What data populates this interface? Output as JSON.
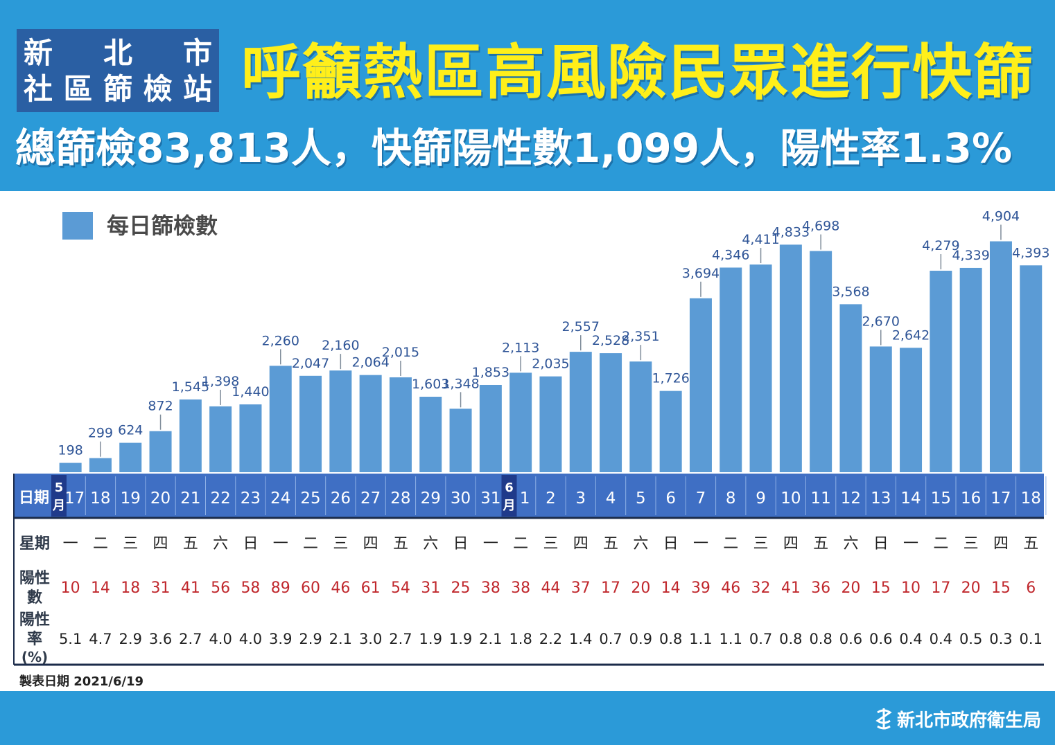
{
  "header": {
    "badge_line1": "新 北 市",
    "badge_line2": "社區篩檢站",
    "headline": "呼籲熱區高風險民眾進行快篩",
    "subline": "總篩檢83,813人，快篩陽性數1,099人，陽性率1.3%"
  },
  "legend": {
    "label": "每日篩檢數"
  },
  "footer": {
    "date": "製表日期 2021/6/19",
    "org": "新北市政府衛生局"
  },
  "table": {
    "row_date_label": "日期",
    "row_weekday_label": "星期",
    "row_positive_label_1": "陽性",
    "row_positive_label_2": "數",
    "row_rate_label_1": "陽性",
    "row_rate_label_2": "率",
    "row_rate_label_3": "(%)",
    "month_may": "5月",
    "month_june": "6月"
  },
  "colors": {
    "header_bg": "#2b9ad8",
    "headline": "#ffef1a",
    "bar": "#5b9bd5",
    "value_label": "#2f5597",
    "date_band": "#3f6fc4",
    "month_marker": "#1f3a8a",
    "positive_text": "#c0282d"
  },
  "chart_data": {
    "type": "bar",
    "categories": [
      "17",
      "18",
      "19",
      "20",
      "21",
      "22",
      "23",
      "24",
      "25",
      "26",
      "27",
      "28",
      "29",
      "30",
      "31",
      "1",
      "2",
      "3",
      "4",
      "5",
      "6",
      "7",
      "8",
      "9",
      "10",
      "11",
      "12",
      "13",
      "14",
      "15",
      "16",
      "17",
      "18"
    ],
    "weekdays": [
      "一",
      "二",
      "三",
      "四",
      "五",
      "六",
      "日",
      "一",
      "二",
      "三",
      "四",
      "五",
      "六",
      "日",
      "一",
      "二",
      "三",
      "四",
      "五",
      "六",
      "日",
      "一",
      "二",
      "三",
      "四",
      "五",
      "六",
      "日",
      "一",
      "二",
      "三",
      "四",
      "五"
    ],
    "series": [
      {
        "name": "每日篩檢數",
        "values": [
          198,
          299,
          624,
          872,
          1545,
          1398,
          1440,
          2260,
          2047,
          2160,
          2064,
          2015,
          1603,
          1348,
          1853,
          2113,
          2035,
          2557,
          2528,
          2351,
          1726,
          3694,
          4346,
          4411,
          4833,
          4698,
          3568,
          2670,
          2642,
          4279,
          4339,
          4904,
          4393
        ],
        "labels": [
          "198",
          "299",
          "624",
          "872",
          "1,545",
          "1,398",
          "1,440",
          "2,260",
          "2,047",
          "2,160",
          "2,064",
          "2,015",
          "1,603",
          "1,348",
          "1,853",
          "2,113",
          "2,035",
          "2,557",
          "2,528",
          "2,351",
          "1,726",
          "3,694",
          "4,346",
          "4,411",
          "4,833",
          "4,698",
          "3,568",
          "2,670",
          "2,642",
          "4,279",
          "4,339",
          "4,904",
          "4,393"
        ]
      }
    ],
    "positives": [
      "10",
      "14",
      "18",
      "31",
      "41",
      "56",
      "58",
      "89",
      "60",
      "46",
      "61",
      "54",
      "31",
      "25",
      "38",
      "38",
      "44",
      "37",
      "17",
      "20",
      "14",
      "39",
      "46",
      "32",
      "41",
      "36",
      "20",
      "15",
      "10",
      "17",
      "20",
      "15",
      "6"
    ],
    "rates": [
      "5.1",
      "4.7",
      "2.9",
      "3.6",
      "2.7",
      "4.0",
      "4.0",
      "3.9",
      "2.9",
      "2.1",
      "3.0",
      "2.7",
      "1.9",
      "1.9",
      "2.1",
      "1.8",
      "2.2",
      "1.4",
      "0.7",
      "0.9",
      "0.8",
      "1.1",
      "1.1",
      "0.7",
      "0.8",
      "0.8",
      "0.6",
      "0.6",
      "0.4",
      "0.4",
      "0.5",
      "0.3",
      "0.1"
    ],
    "ylim": [
      0,
      5000
    ],
    "grid": false,
    "legend": "top-left"
  }
}
